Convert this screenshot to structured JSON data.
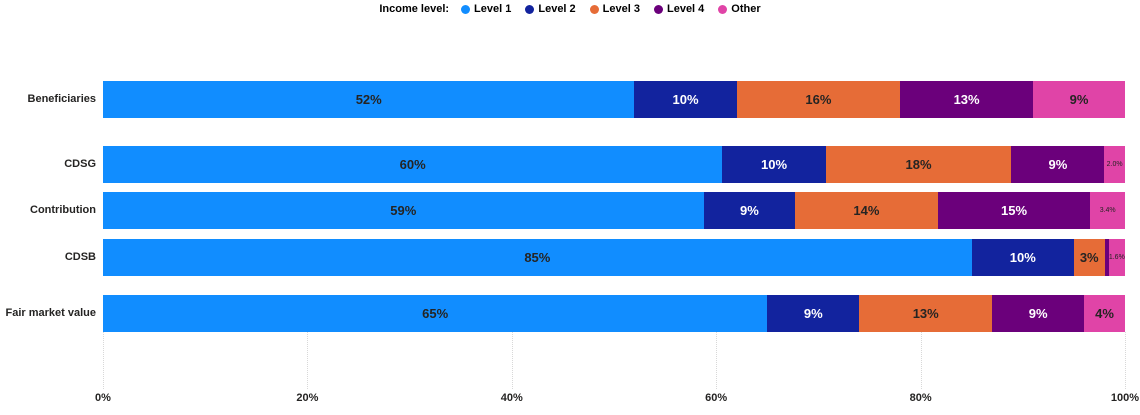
{
  "legend": {
    "title": "Income level:",
    "items": [
      {
        "label": "Level 1",
        "color": "#118DFF"
      },
      {
        "label": "Level 2",
        "color": "#12239E"
      },
      {
        "label": "Level 3",
        "color": "#E66C37"
      },
      {
        "label": "Level 4",
        "color": "#6B007B"
      },
      {
        "label": "Other",
        "color": "#E044A7"
      }
    ]
  },
  "chart_data": {
    "type": "bar",
    "orientation": "horizontal",
    "stacked": true,
    "percent_axis": true,
    "title": "",
    "categories": [
      "Beneficiaries",
      "CDSG",
      "Contribution",
      "CDSB",
      "Fair market value"
    ],
    "series": [
      {
        "name": "Level 1",
        "color": "#118DFF",
        "label_color": "#252423",
        "values": [
          52,
          60,
          59,
          85,
          65
        ],
        "labels": [
          "52%",
          "60%",
          "59%",
          "85%",
          "65%"
        ]
      },
      {
        "name": "Level 2",
        "color": "#12239E",
        "label_color": "#FFFFFF",
        "values": [
          10,
          10,
          9,
          10,
          9
        ],
        "labels": [
          "10%",
          "10%",
          "9%",
          "10%",
          "9%"
        ]
      },
      {
        "name": "Level 3",
        "color": "#E66C37",
        "label_color": "#252423",
        "values": [
          16,
          18,
          14,
          3,
          13
        ],
        "labels": [
          "16%",
          "18%",
          "14%",
          "3%",
          "13%"
        ]
      },
      {
        "name": "Level 4",
        "color": "#6B007B",
        "label_color": "#FFFFFF",
        "values": [
          13,
          9,
          15,
          0.4,
          9
        ],
        "labels": [
          "13%",
          "9%",
          "15%",
          "",
          "9%"
        ]
      },
      {
        "name": "Other",
        "color": "#E044A7",
        "label_color": "#252423",
        "values": [
          9,
          2.0,
          3.4,
          1.6,
          4
        ],
        "labels": [
          "9%",
          "2.0%",
          "3.4%",
          "1.6%",
          "4%"
        ]
      }
    ],
    "x_axis": {
      "tick_labels": [
        "0%",
        "20%",
        "40%",
        "60%",
        "80%",
        "100%"
      ],
      "range": [
        0,
        100
      ],
      "gridlines": "dotted"
    },
    "legend_position": "top-center"
  },
  "colors": {
    "background": "#FFFFFF",
    "gridline": "#D8D8D8",
    "axis_text": "#252423"
  }
}
